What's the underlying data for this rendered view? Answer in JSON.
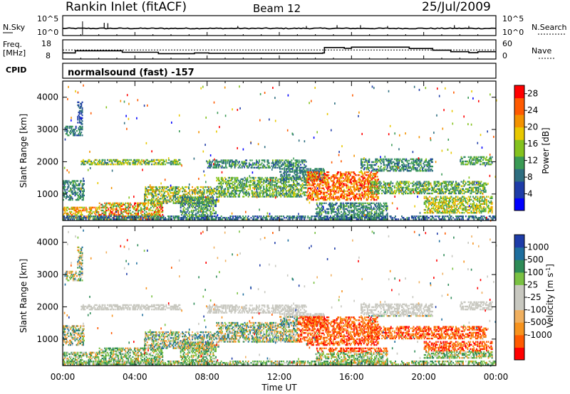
{
  "header": {
    "station": "Rankin Inlet (fitACF)",
    "beam": "Beam 12",
    "date": "25/Jul/2009"
  },
  "noise_panel": {
    "left_label": "N.Sky",
    "right_label": "N.Search",
    "left_top": "10^5",
    "left_bottom": "10^0",
    "right_top": "10^5",
    "right_bottom": "10^0"
  },
  "freq_panel": {
    "left_label_1": "Freq.",
    "left_label_2": "[MHz]",
    "right_label": "Nave",
    "left_top": "18",
    "left_bottom": "8",
    "right_top": "60",
    "right_bottom": "0"
  },
  "cpid": {
    "label": "CPID",
    "value": "normalsound (fast) -157"
  },
  "colors": {
    "power_scale": [
      "#0000ff",
      "#1e3ca8",
      "#2e6e80",
      "#3a9a55",
      "#84c21e",
      "#e8c800",
      "#f39200",
      "#ff5a00",
      "#ff0000"
    ],
    "velocity_scale": [
      "#ff0000",
      "#ff5a00",
      "#f7931e",
      "#f0b060",
      "#c8c8c0",
      "#c8c8c0",
      "#7ac143",
      "#2e8b57",
      "#1e6e9e",
      "#1e3ca8"
    ]
  },
  "chart_data": [
    {
      "type": "line",
      "name": "noise",
      "x_unit": "hours UT",
      "x": [
        0,
        1,
        2,
        3,
        4,
        5,
        6,
        7,
        8,
        9,
        10,
        11,
        12,
        13,
        14,
        15,
        16,
        17,
        18,
        19,
        20,
        21,
        22,
        23,
        24
      ],
      "series": [
        {
          "name": "N.Sky",
          "values": [
            1.9,
            1.9,
            1.8,
            1.9,
            1.8,
            1.8,
            1.9,
            1.8,
            1.8,
            1.9,
            1.9,
            1.8,
            1.8,
            1.9,
            1.9,
            1.8,
            1.8,
            1.9,
            1.9,
            1.8,
            1.8,
            1.9,
            1.9,
            1.9,
            1.9
          ]
        }
      ],
      "ylim": [
        0,
        5
      ],
      "y_scale": "log10"
    },
    {
      "type": "line",
      "name": "frequency",
      "x_unit": "hours UT",
      "step_x": [
        0,
        0.7,
        3.3,
        5.3,
        7.3,
        8.1,
        14.4,
        14.5,
        15.6,
        16.0,
        19.2,
        20.5,
        21.5,
        22.5,
        23.0,
        24
      ],
      "series": [
        {
          "name": "Freq. [MHz]",
          "values": [
            11.2,
            12.3,
            11.5,
            10.8,
            11.2,
            11.0,
            11.2,
            14.0,
            13.6,
            14.2,
            13.5,
            12.6,
            11.8,
            11.3,
            11.8,
            11.8
          ]
        }
      ],
      "ylim_left": [
        8,
        18
      ],
      "ylim_right": [
        0,
        60
      ]
    },
    {
      "type": "heatmap",
      "name": "power",
      "xlabel": "Time UT",
      "ylabel": "Slant Range [km]",
      "x_ticks": [
        "00:00",
        "04:00",
        "08:00",
        "12:00",
        "16:00",
        "20:00",
        "00:00"
      ],
      "y_ticks": [
        1000,
        2000,
        3000,
        4000
      ],
      "xlim": [
        0,
        24
      ],
      "ylim": [
        180,
        4500
      ],
      "colorbar": {
        "label": "Power [dB]",
        "ticks": [
          4,
          8,
          12,
          16,
          20,
          24,
          28
        ],
        "range": [
          0,
          30
        ]
      }
    },
    {
      "type": "heatmap",
      "name": "velocity",
      "xlabel": "Time UT",
      "ylabel": "Slant Range [km]",
      "x_ticks": [
        "00:00",
        "04:00",
        "08:00",
        "12:00",
        "16:00",
        "20:00",
        "00:00"
      ],
      "y_ticks": [
        1000,
        2000,
        3000,
        4000
      ],
      "xlim": [
        0,
        24
      ],
      "ylim": [
        180,
        4500
      ],
      "colorbar": {
        "label": "Velocity [m s^-1]",
        "ticks": [
          1000,
          500,
          100,
          25,
          -25,
          -100,
          -500,
          -1000
        ]
      }
    }
  ]
}
